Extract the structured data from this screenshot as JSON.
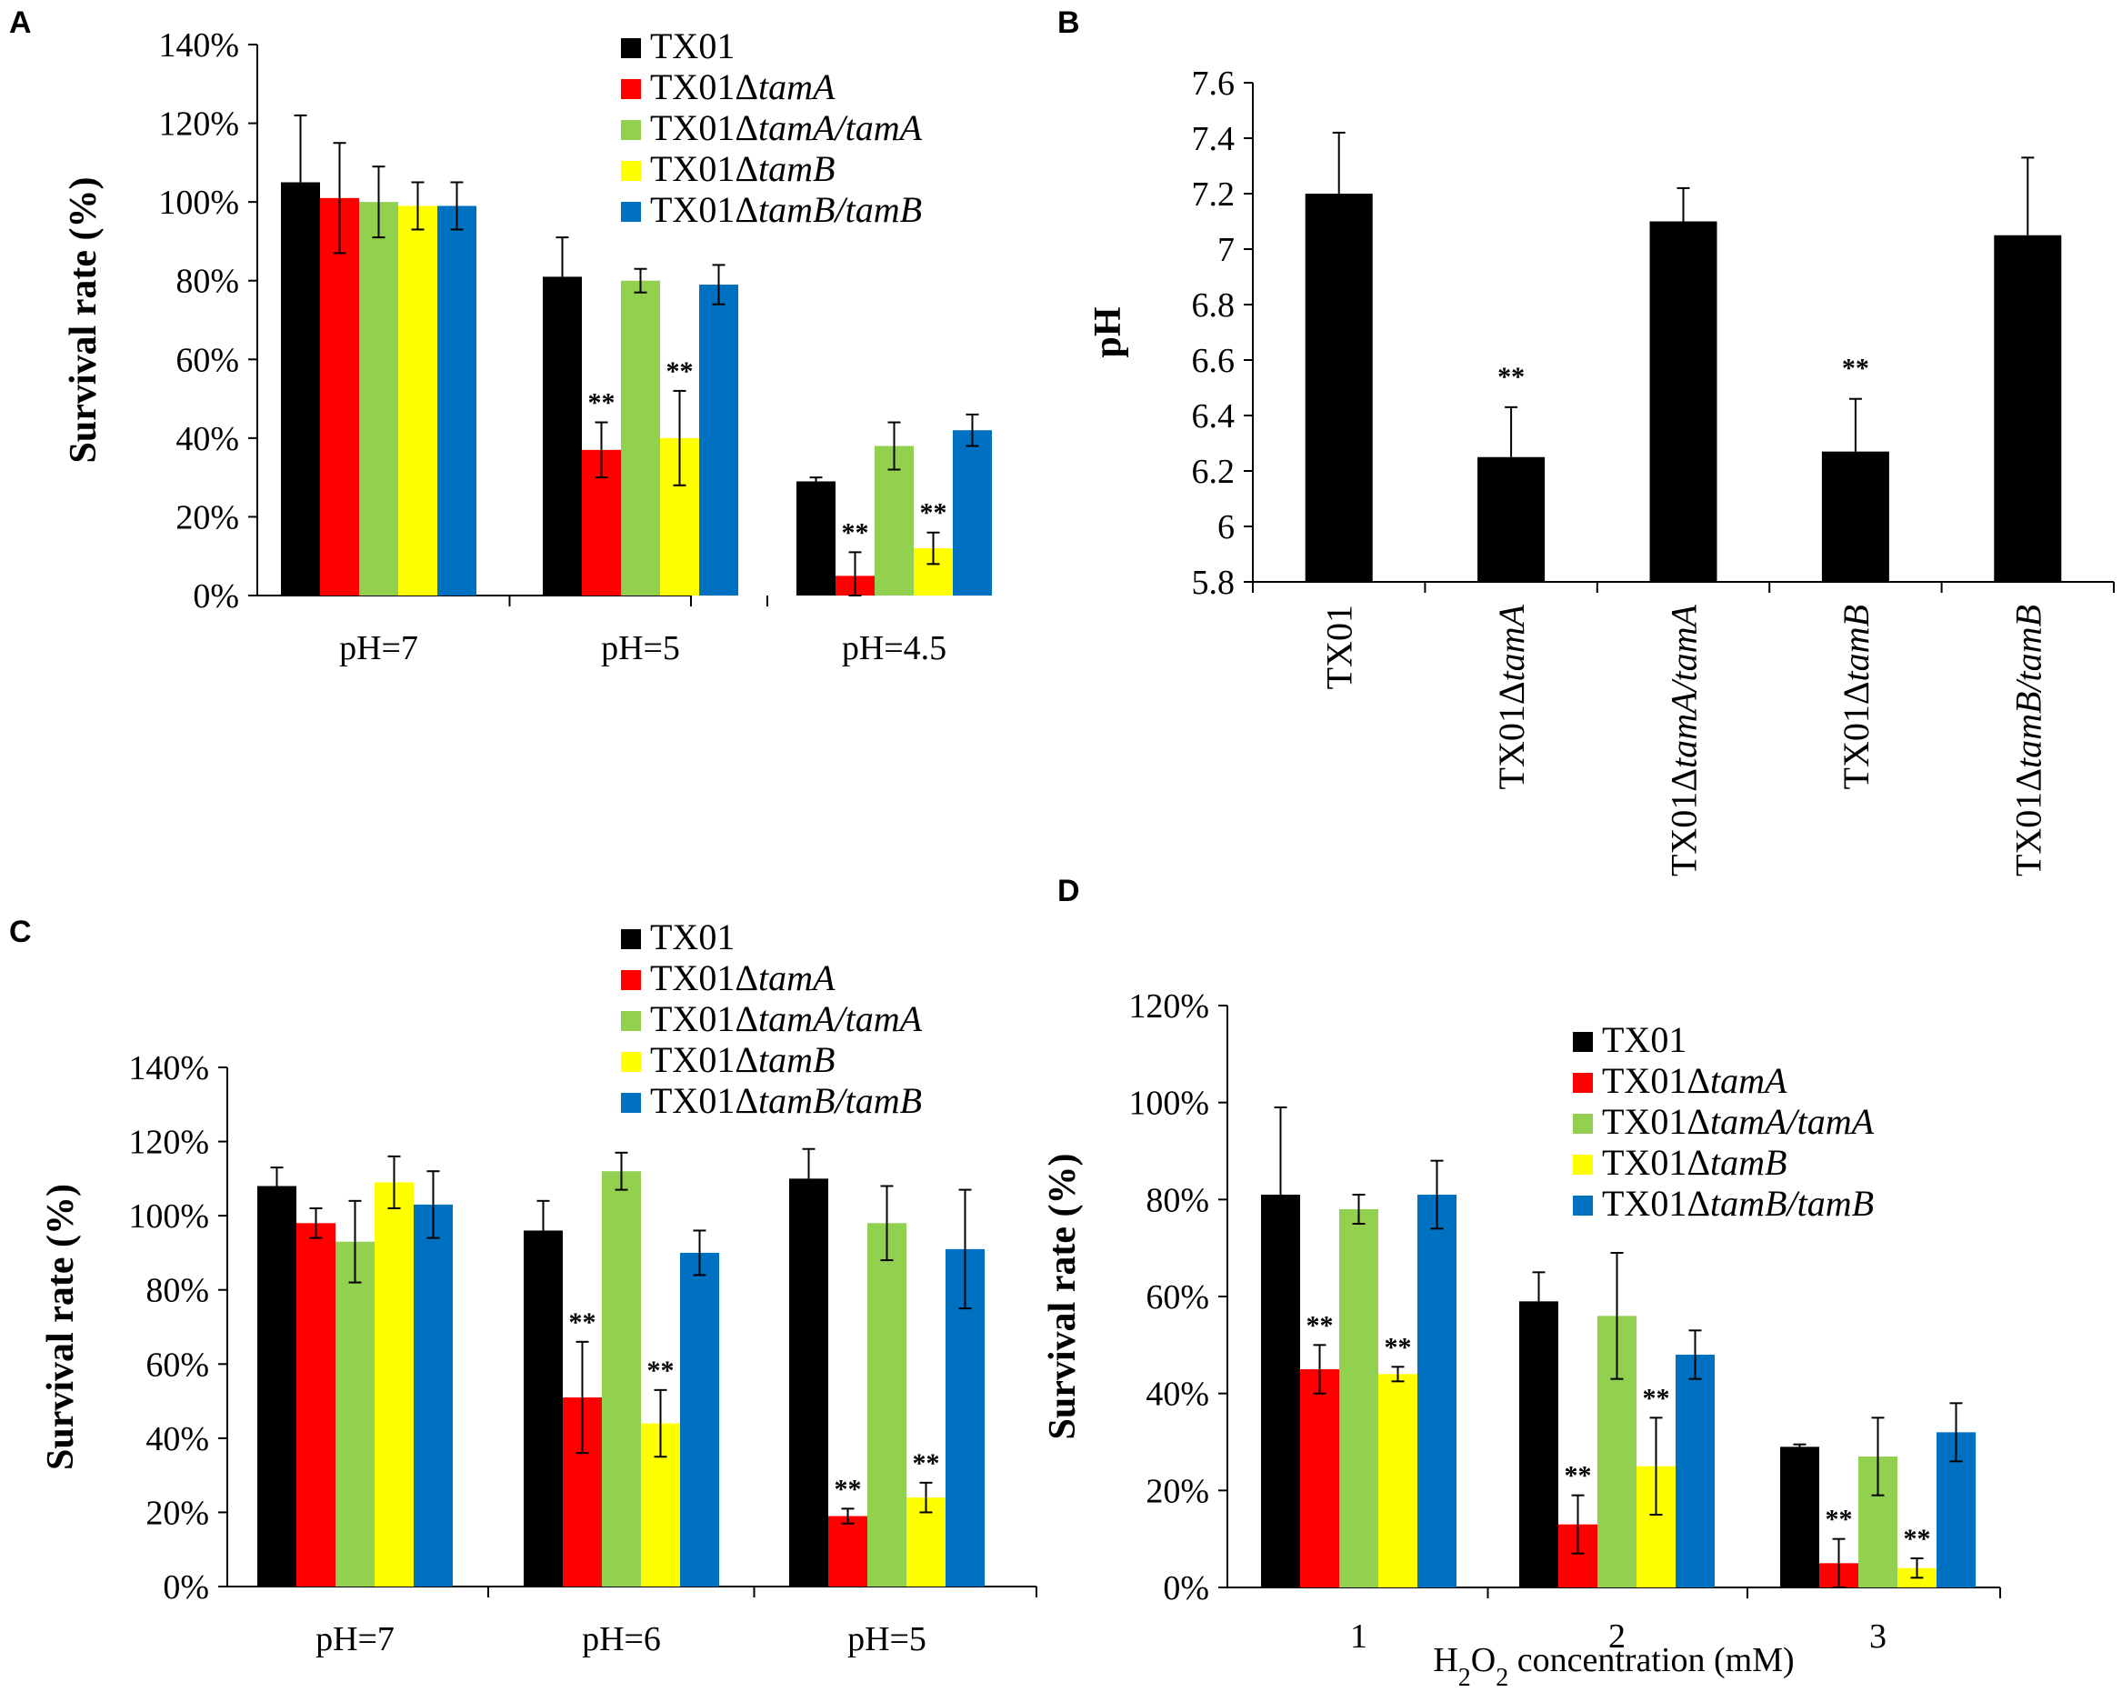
{
  "chart_data": [
    {
      "panel": "A",
      "type": "bar",
      "title": "",
      "xlabel": "",
      "ylabel": "Survival rate (%)",
      "ylim": [
        0,
        140
      ],
      "yticks": [
        "0%",
        "20%",
        "40%",
        "60%",
        "80%",
        "100%",
        "120%",
        "140%"
      ],
      "legend_position": "top-right",
      "categories": [
        "pH=7",
        "pH=5",
        "pH=4.5"
      ],
      "series": [
        {
          "name": "TX01",
          "base": "TX01",
          "italic": "",
          "color": "#000000",
          "values": [
            105,
            81,
            29
          ],
          "errors": [
            17,
            10,
            1
          ],
          "stars": [
            "",
            "",
            ""
          ]
        },
        {
          "name": "TX01ΔtamA",
          "base": "TX01Δ",
          "italic": "tamA",
          "color": "#ff0000",
          "values": [
            101,
            37,
            5
          ],
          "errors": [
            14,
            7,
            6
          ],
          "stars": [
            "",
            "**",
            "**"
          ]
        },
        {
          "name": "TX01ΔtamA/tamA",
          "base": "TX01Δ",
          "italic": "tamA/tamA",
          "color": "#92d050",
          "values": [
            100,
            80,
            38
          ],
          "errors": [
            9,
            3,
            6
          ],
          "stars": [
            "",
            "",
            ""
          ]
        },
        {
          "name": "TX01ΔtamB",
          "base": "TX01Δ",
          "italic": "tamB",
          "color": "#ffff00",
          "values": [
            99,
            40,
            12
          ],
          "errors": [
            6,
            12,
            4
          ],
          "stars": [
            "",
            "**",
            "**"
          ]
        },
        {
          "name": "TX01ΔtamB/tamB",
          "base": "TX01Δ",
          "italic": "tamB/tamB",
          "color": "#0070c0",
          "values": [
            99,
            79,
            42
          ],
          "errors": [
            6,
            5,
            4
          ],
          "stars": [
            "",
            "",
            ""
          ]
        }
      ]
    },
    {
      "panel": "B",
      "type": "bar",
      "title": "",
      "xlabel": "",
      "ylabel": "pH",
      "ylim": [
        5.8,
        7.6
      ],
      "yticks": [
        "5.8",
        "6",
        "6.2",
        "6.4",
        "6.6",
        "6.8",
        "7",
        "7.2",
        "7.4",
        "7.6"
      ],
      "categories": [
        {
          "base": "TX01",
          "italic": ""
        },
        {
          "base": "TX01Δ",
          "italic": "tamA"
        },
        {
          "base": "TX01Δ",
          "italic": "tamA/tamA"
        },
        {
          "base": "TX01Δ",
          "italic": "tamB"
        },
        {
          "base": "TX01Δ",
          "italic": "tamB/tamB"
        }
      ],
      "series": [
        {
          "name": "pH",
          "color": "#000000",
          "values": [
            7.2,
            6.25,
            7.1,
            6.27,
            7.05
          ],
          "errors": [
            0.22,
            0.18,
            0.12,
            0.19,
            0.28
          ],
          "stars": [
            "",
            "**",
            "",
            "**",
            ""
          ]
        }
      ]
    },
    {
      "panel": "C",
      "type": "bar",
      "title": "",
      "xlabel": "",
      "ylabel": "Survival rate (%)",
      "ylim": [
        0,
        140
      ],
      "yticks": [
        "0%",
        "20%",
        "40%",
        "60%",
        "80%",
        "100%",
        "120%",
        "140%"
      ],
      "legend_position": "top-right",
      "categories": [
        "pH=7",
        "pH=6",
        "pH=5"
      ],
      "series": [
        {
          "name": "TX01",
          "base": "TX01",
          "italic": "",
          "color": "#000000",
          "values": [
            108,
            96,
            110
          ],
          "errors": [
            5,
            8,
            8
          ],
          "stars": [
            "",
            "",
            ""
          ]
        },
        {
          "name": "TX01ΔtamA",
          "base": "TX01Δ",
          "italic": "tamA",
          "color": "#ff0000",
          "values": [
            98,
            51,
            19
          ],
          "errors": [
            4,
            15,
            2
          ],
          "stars": [
            "",
            "**",
            "**"
          ]
        },
        {
          "name": "TX01ΔtamA/tamA",
          "base": "TX01Δ",
          "italic": "tamA/tamA",
          "color": "#92d050",
          "values": [
            93,
            112,
            98
          ],
          "errors": [
            11,
            5,
            10
          ],
          "stars": [
            "",
            "",
            ""
          ]
        },
        {
          "name": "TX01ΔtamB",
          "base": "TX01Δ",
          "italic": "tamB",
          "color": "#ffff00",
          "values": [
            109,
            44,
            24
          ],
          "errors": [
            7,
            9,
            4
          ],
          "stars": [
            "",
            "**",
            "**"
          ]
        },
        {
          "name": "TX01ΔtamB/tamB",
          "base": "TX01Δ",
          "italic": "tamB/tamB",
          "color": "#0070c0",
          "values": [
            103,
            90,
            91
          ],
          "errors": [
            9,
            6,
            16
          ],
          "stars": [
            "",
            "",
            ""
          ]
        }
      ]
    },
    {
      "panel": "D",
      "type": "bar",
      "title": "",
      "xlabel_parts": [
        "H",
        "2",
        "O",
        "2",
        " concentration (mM)"
      ],
      "ylabel": "Survival rate (%)",
      "ylim": [
        0,
        120
      ],
      "yticks": [
        "0%",
        "20%",
        "40%",
        "60%",
        "80%",
        "100%",
        "120%"
      ],
      "legend_position": "top-right",
      "categories": [
        "1",
        "2",
        "3"
      ],
      "series": [
        {
          "name": "TX01",
          "base": "TX01",
          "italic": "",
          "color": "#000000",
          "values": [
            81,
            59,
            29
          ],
          "errors": [
            18,
            6,
            0.5
          ],
          "stars": [
            "",
            "",
            ""
          ]
        },
        {
          "name": "TX01ΔtamA",
          "base": "TX01Δ",
          "italic": "tamA",
          "color": "#ff0000",
          "values": [
            45,
            13,
            5
          ],
          "errors": [
            5,
            6,
            5
          ],
          "stars": [
            "**",
            "**",
            "**"
          ]
        },
        {
          "name": "TX01ΔtamA/tamA",
          "base": "TX01Δ",
          "italic": "tamA/tamA",
          "color": "#92d050",
          "values": [
            78,
            56,
            27
          ],
          "errors": [
            3,
            13,
            8
          ],
          "stars": [
            "",
            "",
            ""
          ]
        },
        {
          "name": "TX01ΔtamB",
          "base": "TX01Δ",
          "italic": "tamB",
          "color": "#ffff00",
          "values": [
            44,
            25,
            4
          ],
          "errors": [
            1.5,
            10,
            2
          ],
          "stars": [
            "**",
            "**",
            "**"
          ]
        },
        {
          "name": "TX01ΔtamB/tamB",
          "base": "TX01Δ",
          "italic": "tamB/tamB",
          "color": "#0070c0",
          "values": [
            81,
            48,
            32
          ],
          "errors": [
            7,
            5,
            6
          ],
          "stars": [
            "",
            "",
            ""
          ]
        }
      ]
    }
  ]
}
